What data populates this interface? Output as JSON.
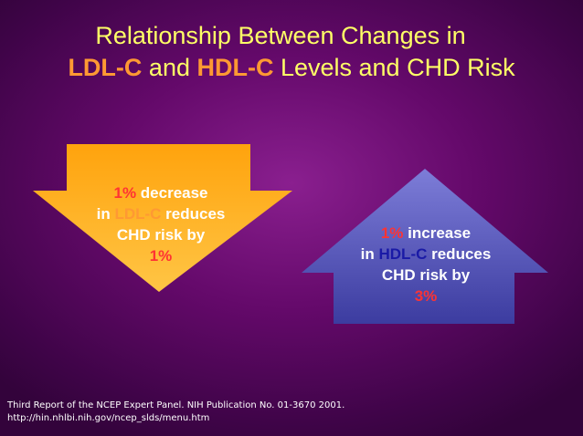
{
  "title": {
    "line1": "Relationship Between Changes in",
    "ldl": "LDL-C",
    "and": " and ",
    "hdl": "HDL-C",
    "rest": " Levels and CHD Risk"
  },
  "down_arrow": {
    "pct": "1%",
    "word": " decrease",
    "in": "in ",
    "ldl": "LDL-C",
    "reduces": " reduces",
    "line3": "CHD risk by",
    "line4": "1%"
  },
  "up_arrow": {
    "pct": "1%",
    "word": " increase",
    "in": "in ",
    "hdl": "HDL-C",
    "reduces": " reduces",
    "line3": "CHD risk by",
    "line4": "3%"
  },
  "footnote": {
    "line1": "Third Report of the NCEP Expert Panel. NIH Publication No. 01-3670 2001.",
    "line2": "http://hin.nhlbi.nih.gov/ncep_slds/menu.htm"
  },
  "colors": {
    "title": "#ffff66",
    "highlight": "#ff9933",
    "down_arrow": "#ffb020",
    "up_arrow": "#5a5ab8",
    "red": "#ff3333",
    "blue": "#1a1aa6"
  }
}
